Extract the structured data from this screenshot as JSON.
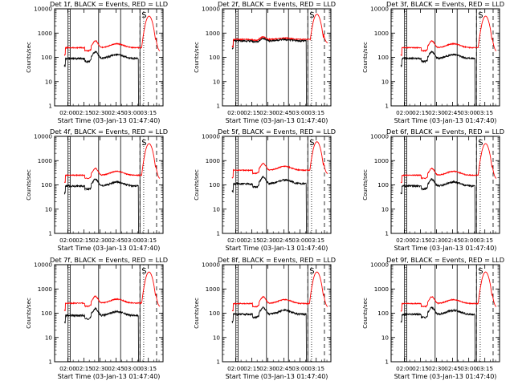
{
  "figure": {
    "ylabel": "Counts/sec",
    "xlabel": "Start Time (03-Jan-13 01:47:40)",
    "marker_label": "S"
  },
  "colors": {
    "events": "#000000",
    "lld": "#ff0000",
    "axes": "#000000",
    "background": "#ffffff"
  },
  "chart_data": [
    {
      "type": "line",
      "title": "Det 1f, BLACK = Events, RED = LLD",
      "xlabel": "Start Time (03-Jan-13 01:47:40)",
      "ylabel": "Counts/sec",
      "y_scale": "log",
      "ylim": [
        1,
        10000
      ],
      "x_ticks": [
        "02:00",
        "02:15",
        "02:30",
        "02:45",
        "03:00",
        "03:15"
      ],
      "y_ticks": [
        "1",
        "10",
        "100",
        "1000",
        "10000"
      ],
      "event_base": 90,
      "lld_base": 250,
      "lld_peak": 5000,
      "hump": 1.0,
      "series": [
        {
          "name": "Events",
          "color": "#000000"
        },
        {
          "name": "LLD",
          "color": "#ff0000"
        }
      ]
    },
    {
      "type": "line",
      "title": "Det 2f, BLACK = Events, RED = LLD",
      "xlabel": "Start Time (03-Jan-13 01:47:40)",
      "ylabel": "Counts/sec",
      "y_scale": "log",
      "ylim": [
        1,
        10000
      ],
      "x_ticks": [
        "02:00",
        "02:15",
        "02:30",
        "02:45",
        "03:00",
        "03:15"
      ],
      "y_ticks": [
        "1",
        "10",
        "100",
        "1000",
        "10000"
      ],
      "event_base": 480,
      "lld_base": 550,
      "lld_peak": 6000,
      "hump": 0.3,
      "series": [
        {
          "name": "Events",
          "color": "#000000"
        },
        {
          "name": "LLD",
          "color": "#ff0000"
        }
      ]
    },
    {
      "type": "line",
      "title": "Det 3f, BLACK = Events, RED = LLD",
      "xlabel": "Start Time (03-Jan-13 01:47:40)",
      "ylabel": "Counts/sec",
      "y_scale": "log",
      "ylim": [
        1,
        10000
      ],
      "x_ticks": [
        "02:00",
        "02:15",
        "02:30",
        "02:45",
        "03:00",
        "03:15"
      ],
      "y_ticks": [
        "1",
        "10",
        "100",
        "1000",
        "10000"
      ],
      "event_base": 90,
      "lld_base": 250,
      "lld_peak": 5000,
      "hump": 1.0,
      "series": [
        {
          "name": "Events",
          "color": "#000000"
        },
        {
          "name": "LLD",
          "color": "#ff0000"
        }
      ]
    },
    {
      "type": "line",
      "title": "Det 4f, BLACK = Events, RED = LLD",
      "xlabel": "Start Time (03-Jan-13 01:47:40)",
      "ylabel": "Counts/sec",
      "y_scale": "log",
      "ylim": [
        1,
        10000
      ],
      "x_ticks": [
        "02:00",
        "02:15",
        "02:30",
        "02:45",
        "03:00",
        "03:15"
      ],
      "y_ticks": [
        "1",
        "10",
        "100",
        "1000",
        "10000"
      ],
      "event_base": 90,
      "lld_base": 250,
      "lld_peak": 5000,
      "hump": 1.0,
      "series": [
        {
          "name": "Events",
          "color": "#000000"
        },
        {
          "name": "LLD",
          "color": "#ff0000"
        }
      ]
    },
    {
      "type": "line",
      "title": "Det 5f, BLACK = Events, RED = LLD",
      "xlabel": "Start Time (03-Jan-13 01:47:40)",
      "ylabel": "Counts/sec",
      "y_scale": "log",
      "ylim": [
        1,
        10000
      ],
      "x_ticks": [
        "02:00",
        "02:15",
        "02:30",
        "02:45",
        "03:00",
        "03:15"
      ],
      "y_ticks": [
        "1",
        "10",
        "100",
        "1000",
        "10000"
      ],
      "event_base": 110,
      "lld_base": 400,
      "lld_peak": 6000,
      "hump": 1.0,
      "series": [
        {
          "name": "Events",
          "color": "#000000"
        },
        {
          "name": "LLD",
          "color": "#ff0000"
        }
      ]
    },
    {
      "type": "line",
      "title": "Det 6f, BLACK = Events, RED = LLD",
      "xlabel": "Start Time (03-Jan-13 01:47:40)",
      "ylabel": "Counts/sec",
      "y_scale": "log",
      "ylim": [
        1,
        10000
      ],
      "x_ticks": [
        "02:00",
        "02:15",
        "02:30",
        "02:45",
        "03:00",
        "03:15"
      ],
      "y_ticks": [
        "1",
        "10",
        "100",
        "1000",
        "10000"
      ],
      "event_base": 90,
      "lld_base": 250,
      "lld_peak": 5000,
      "hump": 1.0,
      "series": [
        {
          "name": "Events",
          "color": "#000000"
        },
        {
          "name": "LLD",
          "color": "#ff0000"
        }
      ]
    },
    {
      "type": "line",
      "title": "Det 7f, BLACK = Events, RED = LLD",
      "xlabel": "Start Time (03-Jan-13 01:47:40)",
      "ylabel": "Counts/sec",
      "y_scale": "log",
      "ylim": [
        1,
        10000
      ],
      "x_ticks": [
        "02:00",
        "02:15",
        "02:30",
        "02:45",
        "03:00",
        "03:15"
      ],
      "y_ticks": [
        "1",
        "10",
        "100",
        "1000",
        "10000"
      ],
      "event_base": 80,
      "lld_base": 260,
      "lld_peak": 5000,
      "hump": 1.0,
      "series": [
        {
          "name": "Events",
          "color": "#000000"
        },
        {
          "name": "LLD",
          "color": "#ff0000"
        }
      ]
    },
    {
      "type": "line",
      "title": "Det 8f, BLACK = Events, RED = LLD",
      "xlabel": "Start Time (03-Jan-13 01:47:40)",
      "ylabel": "Counts/sec",
      "y_scale": "log",
      "ylim": [
        1,
        10000
      ],
      "x_ticks": [
        "02:00",
        "02:15",
        "02:30",
        "02:45",
        "03:00",
        "03:15"
      ],
      "y_ticks": [
        "1",
        "10",
        "100",
        "1000",
        "10000"
      ],
      "event_base": 90,
      "lld_base": 250,
      "lld_peak": 5000,
      "hump": 1.0,
      "series": [
        {
          "name": "Events",
          "color": "#000000"
        },
        {
          "name": "LLD",
          "color": "#ff0000"
        }
      ]
    },
    {
      "type": "line",
      "title": "Det 9f, BLACK = Events, RED = LLD",
      "xlabel": "Start Time (03-Jan-13 01:47:40)",
      "ylabel": "Counts/sec",
      "y_scale": "log",
      "ylim": [
        1,
        10000
      ],
      "x_ticks": [
        "02:00",
        "02:15",
        "02:30",
        "02:45",
        "03:00",
        "03:15"
      ],
      "y_ticks": [
        "1",
        "10",
        "100",
        "1000",
        "10000"
      ],
      "event_base": 90,
      "lld_base": 250,
      "lld_peak": 5000,
      "hump": 1.0,
      "series": [
        {
          "name": "Events",
          "color": "#000000"
        },
        {
          "name": "LLD",
          "color": "#ff0000"
        }
      ]
    }
  ]
}
